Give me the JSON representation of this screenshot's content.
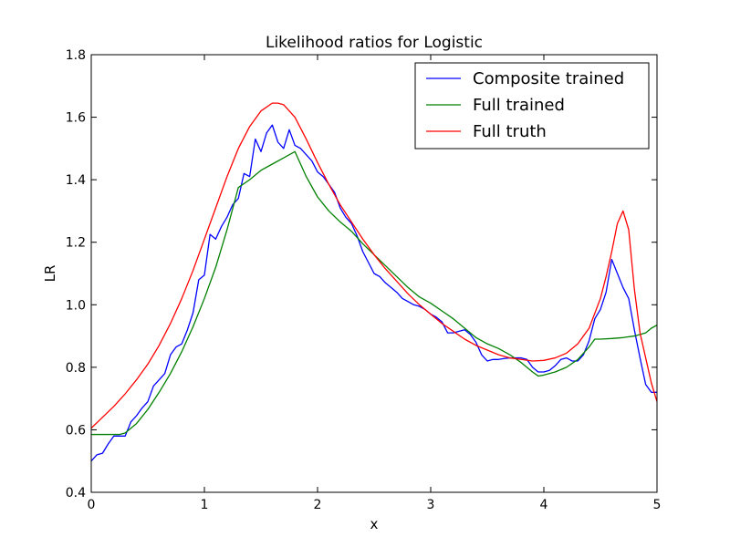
{
  "chart_data": {
    "type": "line",
    "title": "Likelihood ratios for Logistic",
    "xlabel": "x",
    "ylabel": "LR",
    "xlim": [
      0,
      5
    ],
    "ylim": [
      0.4,
      1.8
    ],
    "xticks": [
      0,
      1,
      2,
      3,
      4,
      5
    ],
    "xtick_labels": [
      "0",
      "1",
      "2",
      "3",
      "4",
      "5"
    ],
    "yticks": [
      0.4,
      0.6,
      0.8,
      1.0,
      1.2,
      1.4,
      1.6,
      1.8
    ],
    "ytick_labels": [
      "0.4",
      "0.6",
      "0.8",
      "1.0",
      "1.2",
      "1.4",
      "1.6",
      "1.8"
    ],
    "grid": false,
    "legend_position": "top-right",
    "series": [
      {
        "name": "Composite trained",
        "color": "#0000ff",
        "x": [
          0,
          0.05,
          0.1,
          0.15,
          0.2,
          0.25,
          0.3,
          0.35,
          0.4,
          0.45,
          0.5,
          0.55,
          0.6,
          0.65,
          0.7,
          0.75,
          0.8,
          0.85,
          0.9,
          0.95,
          1.0,
          1.05,
          1.1,
          1.15,
          1.2,
          1.25,
          1.3,
          1.35,
          1.4,
          1.45,
          1.5,
          1.55,
          1.6,
          1.65,
          1.7,
          1.75,
          1.8,
          1.85,
          1.9,
          1.95,
          2.0,
          2.05,
          2.1,
          2.15,
          2.2,
          2.25,
          2.3,
          2.35,
          2.4,
          2.45,
          2.5,
          2.55,
          2.6,
          2.65,
          2.7,
          2.75,
          2.8,
          2.85,
          2.9,
          2.95,
          3.0,
          3.05,
          3.1,
          3.15,
          3.2,
          3.25,
          3.3,
          3.35,
          3.4,
          3.45,
          3.5,
          3.55,
          3.6,
          3.65,
          3.7,
          3.75,
          3.8,
          3.85,
          3.9,
          3.95,
          4.0,
          4.05,
          4.1,
          4.15,
          4.2,
          4.25,
          4.3,
          4.35,
          4.4,
          4.45,
          4.5,
          4.55,
          4.6,
          4.65,
          4.7,
          4.75,
          4.8,
          4.85,
          4.9,
          4.95,
          5.0
        ],
        "y": [
          0.5,
          0.52,
          0.525,
          0.555,
          0.58,
          0.58,
          0.58,
          0.625,
          0.645,
          0.67,
          0.69,
          0.74,
          0.76,
          0.78,
          0.84,
          0.865,
          0.875,
          0.92,
          0.975,
          1.08,
          1.095,
          1.225,
          1.21,
          1.25,
          1.28,
          1.32,
          1.34,
          1.42,
          1.41,
          1.53,
          1.49,
          1.55,
          1.575,
          1.52,
          1.5,
          1.56,
          1.51,
          1.5,
          1.48,
          1.46,
          1.425,
          1.41,
          1.385,
          1.36,
          1.31,
          1.28,
          1.26,
          1.22,
          1.17,
          1.135,
          1.1,
          1.09,
          1.07,
          1.055,
          1.04,
          1.02,
          1.01,
          1.0,
          0.995,
          0.985,
          0.97,
          0.96,
          0.945,
          0.91,
          0.91,
          0.915,
          0.92,
          0.905,
          0.88,
          0.84,
          0.82,
          0.825,
          0.825,
          0.828,
          0.83,
          0.83,
          0.83,
          0.825,
          0.8,
          0.785,
          0.785,
          0.79,
          0.805,
          0.825,
          0.83,
          0.82,
          0.82,
          0.84,
          0.885,
          0.955,
          0.985,
          1.04,
          1.145,
          1.1,
          1.055,
          1.02,
          0.92,
          0.83,
          0.745,
          0.72,
          0.72
        ]
      },
      {
        "name": "Full trained",
        "color": "#008000",
        "x": [
          0,
          0.1,
          0.2,
          0.25,
          0.3,
          0.4,
          0.5,
          0.6,
          0.7,
          0.8,
          0.9,
          1.0,
          1.1,
          1.2,
          1.3,
          1.4,
          1.5,
          1.6,
          1.7,
          1.8,
          1.9,
          2.0,
          2.1,
          2.2,
          2.3,
          2.4,
          2.5,
          2.6,
          2.7,
          2.8,
          2.9,
          3.0,
          3.1,
          3.2,
          3.3,
          3.4,
          3.5,
          3.6,
          3.7,
          3.8,
          3.9,
          3.95,
          4.0,
          4.1,
          4.2,
          4.3,
          4.4,
          4.45,
          4.5,
          4.6,
          4.7,
          4.8,
          4.9,
          4.95,
          5.0
        ],
        "y": [
          0.585,
          0.585,
          0.585,
          0.585,
          0.59,
          0.62,
          0.665,
          0.72,
          0.78,
          0.85,
          0.93,
          1.02,
          1.12,
          1.24,
          1.375,
          1.4,
          1.43,
          1.45,
          1.47,
          1.49,
          1.41,
          1.345,
          1.3,
          1.265,
          1.235,
          1.195,
          1.16,
          1.125,
          1.09,
          1.055,
          1.025,
          1.005,
          0.98,
          0.955,
          0.925,
          0.895,
          0.875,
          0.86,
          0.84,
          0.815,
          0.785,
          0.772,
          0.775,
          0.785,
          0.8,
          0.825,
          0.865,
          0.89,
          0.89,
          0.892,
          0.895,
          0.9,
          0.91,
          0.925,
          0.935
        ]
      },
      {
        "name": "Full truth",
        "color": "#ff0000",
        "x": [
          0,
          0.1,
          0.2,
          0.3,
          0.4,
          0.5,
          0.6,
          0.7,
          0.8,
          0.9,
          1.0,
          1.1,
          1.2,
          1.3,
          1.4,
          1.5,
          1.6,
          1.65,
          1.7,
          1.8,
          1.9,
          2.0,
          2.1,
          2.2,
          2.3,
          2.4,
          2.5,
          2.6,
          2.7,
          2.8,
          2.9,
          3.0,
          3.1,
          3.2,
          3.3,
          3.4,
          3.5,
          3.6,
          3.7,
          3.8,
          3.9,
          4.0,
          4.1,
          4.2,
          4.3,
          4.4,
          4.5,
          4.55,
          4.6,
          4.65,
          4.7,
          4.75,
          4.8,
          4.85,
          4.9,
          4.95,
          5.0
        ],
        "y": [
          0.605,
          0.64,
          0.675,
          0.715,
          0.76,
          0.81,
          0.87,
          0.94,
          1.02,
          1.11,
          1.21,
          1.31,
          1.41,
          1.5,
          1.57,
          1.62,
          1.645,
          1.645,
          1.64,
          1.6,
          1.53,
          1.455,
          1.385,
          1.32,
          1.265,
          1.21,
          1.16,
          1.115,
          1.075,
          1.035,
          1.0,
          0.97,
          0.94,
          0.915,
          0.89,
          0.87,
          0.855,
          0.84,
          0.83,
          0.825,
          0.82,
          0.822,
          0.83,
          0.845,
          0.875,
          0.925,
          1.02,
          1.09,
          1.17,
          1.26,
          1.3,
          1.24,
          1.05,
          0.91,
          0.83,
          0.75,
          0.69
        ]
      }
    ]
  }
}
